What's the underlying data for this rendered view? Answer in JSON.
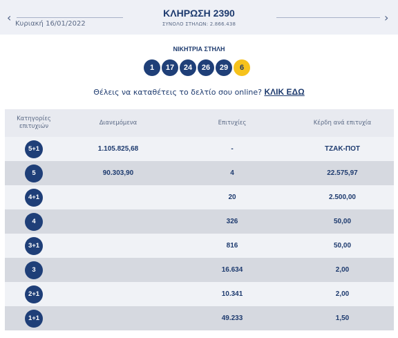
{
  "header": {
    "prev_icon": "chevron-left-icon",
    "next_icon": "chevron-right-icon",
    "prev_glyph": "‹",
    "next_glyph": "›",
    "date": "Κυριακή 16/01/2022",
    "draw_title": "ΚΛΗΡΩΣΗ 2390",
    "total_columns": "ΣΥΝΟΛΟ ΣΤΗΛΩΝ: 2.866.438"
  },
  "winning": {
    "title": "ΝΙΚΗΤΡΙΑ ΣΤΗΛΗ",
    "numbers": [
      "1",
      "17",
      "24",
      "26",
      "29"
    ],
    "joker": "6"
  },
  "online": {
    "text": "Θέλεις να καταθέτεις το δελτίο σου online?",
    "link": "ΚΛΙΚ ΕΔΩ"
  },
  "table": {
    "headers": {
      "category": "Κατηγορίες επιτυχιών",
      "distributed": "Διανεμόμενα",
      "winners": "Επιτυχίες",
      "prize": "Κέρδη ανά επιτυχία"
    },
    "rows": [
      {
        "category": "5+1",
        "distributed": "1.105.825,68",
        "winners": "-",
        "prize": "ΤΖΑΚ-ΠΟΤ"
      },
      {
        "category": "5",
        "distributed": "90.303,90",
        "winners": "4",
        "prize": "22.575,97"
      },
      {
        "category": "4+1",
        "distributed": "",
        "winners": "20",
        "prize": "2.500,00"
      },
      {
        "category": "4",
        "distributed": "",
        "winners": "326",
        "prize": "50,00"
      },
      {
        "category": "3+1",
        "distributed": "",
        "winners": "816",
        "prize": "50,00"
      },
      {
        "category": "3",
        "distributed": "",
        "winners": "16.634",
        "prize": "2,00"
      },
      {
        "category": "2+1",
        "distributed": "",
        "winners": "10.341",
        "prize": "2,00"
      },
      {
        "category": "1+1",
        "distributed": "",
        "winners": "49.233",
        "prize": "1,50"
      }
    ]
  },
  "colors": {
    "primary_navy": "#1f3f78",
    "joker_yellow": "#f6c21c",
    "header_bg": "#eef0f6",
    "row_light": "#f0f2f6",
    "row_dark": "#d6d9e0"
  }
}
